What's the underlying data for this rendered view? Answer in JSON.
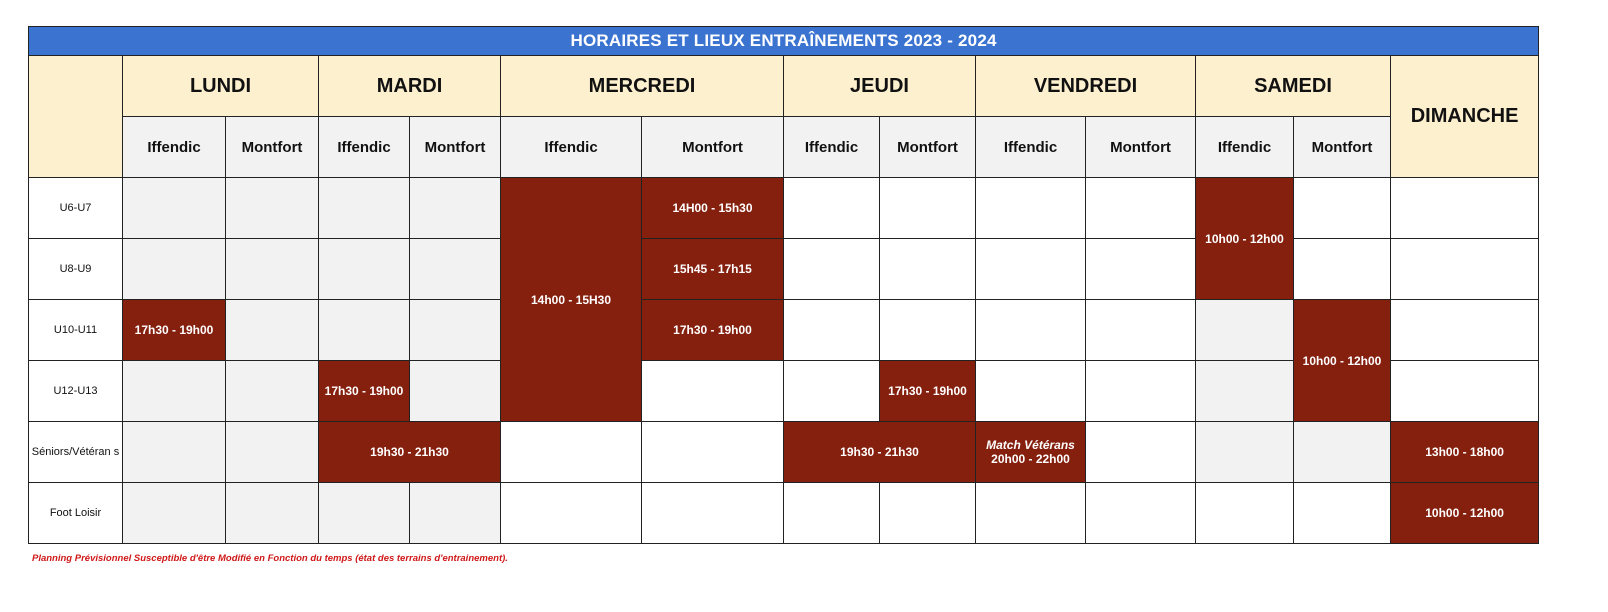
{
  "title": "HORAIRES ET LIEUX ENTRAÎNEMENTS 2023 - 2024",
  "days": {
    "lundi": "LUNDI",
    "mardi": "MARDI",
    "mercredi": "MERCREDI",
    "jeudi": "JEUDI",
    "vendredi": "VENDREDI",
    "samedi": "SAMEDI",
    "dimanche": "DIMANCHE"
  },
  "locations": {
    "iffendic": "Iffendic",
    "montfort": "Montfort"
  },
  "categories": {
    "u6u7": "U6-U7",
    "u8u9": "U8-U9",
    "u10u11": "U10-U11",
    "u12u13": "U12-U13",
    "seniors": "Séniors/Vétéran s",
    "loisir": "Foot Loisir"
  },
  "slots": {
    "lundi_iffendic_u10": "17h30 - 19h00",
    "mardi_iffendic_u12": "17h30 - 19h00",
    "mardi_seniors": "19h30 - 21h30",
    "mercredi_iffendic_ecole": "14h00 - 15H30",
    "mercredi_montfort_u6": "14H00 - 15h30",
    "mercredi_montfort_u8": "15h45 - 17h15",
    "mercredi_montfort_u10": "17h30 - 19h00",
    "jeudi_montfort_u12": "17h30 - 19h00",
    "jeudi_seniors": "19h30 - 21h30",
    "vendredi_match_label": "Match Vétérans",
    "vendredi_match_time": "20h00 - 22h00",
    "samedi_iffendic": "10h00 - 12h00",
    "samedi_montfort": "10h00 - 12h00",
    "dimanche_seniors": "13h00 - 18h00",
    "dimanche_loisir": "10h00 - 12h00"
  },
  "colors": {
    "title_bar": "#3b73d1",
    "header_bg": "#fdf0cf",
    "slot_bg": "#85200f",
    "note_text": "#d01818"
  },
  "footnote": "Planning Prévisionnel Susceptible d'être Modifié en Fonction du temps (état des terrains d'entrainement)."
}
